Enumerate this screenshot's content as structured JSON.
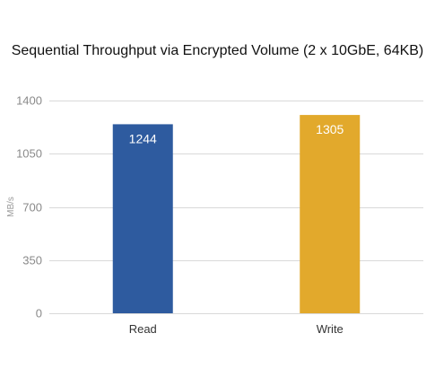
{
  "chart_data": {
    "type": "bar",
    "title": "Sequential Throughput via Encrypted Volume (2 x 10GbE, 64KB)",
    "xlabel": "",
    "ylabel": "MB/s",
    "categories": [
      "Read",
      "Write"
    ],
    "values": [
      1244,
      1305
    ],
    "data_labels": [
      "1244",
      "1305"
    ],
    "bar_colors": [
      "#2e5b9f",
      "#e2a92c"
    ],
    "ylim": [
      0,
      1400
    ],
    "yticks": [
      0,
      350,
      700,
      1050,
      1400
    ],
    "grid": true,
    "legend": "none"
  }
}
